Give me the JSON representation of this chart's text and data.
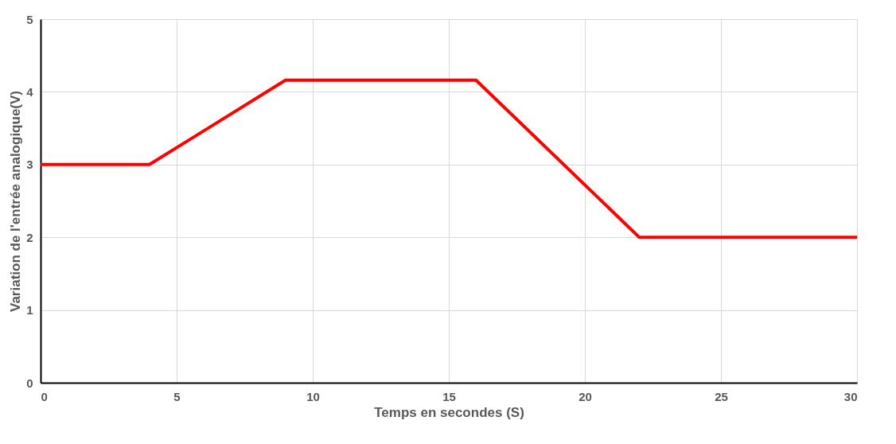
{
  "chart_data": {
    "type": "line",
    "xlabel": "Temps en secondes (S)",
    "ylabel": "Variation de l'entrée analogique(V)",
    "x": [
      0,
      4,
      9,
      16,
      22,
      30
    ],
    "series": [
      {
        "color": "#ff0000",
        "values": [
          3,
          3,
          4.16,
          4.16,
          2,
          2
        ]
      }
    ],
    "xlim": [
      0,
      30
    ],
    "xticks": [
      0,
      5,
      10,
      15,
      20,
      25,
      30
    ],
    "ylim": [
      0,
      5
    ],
    "yticks": [
      0,
      1,
      2,
      3,
      4,
      5
    ],
    "grid": true,
    "marker": "none",
    "line_style": "solid"
  }
}
